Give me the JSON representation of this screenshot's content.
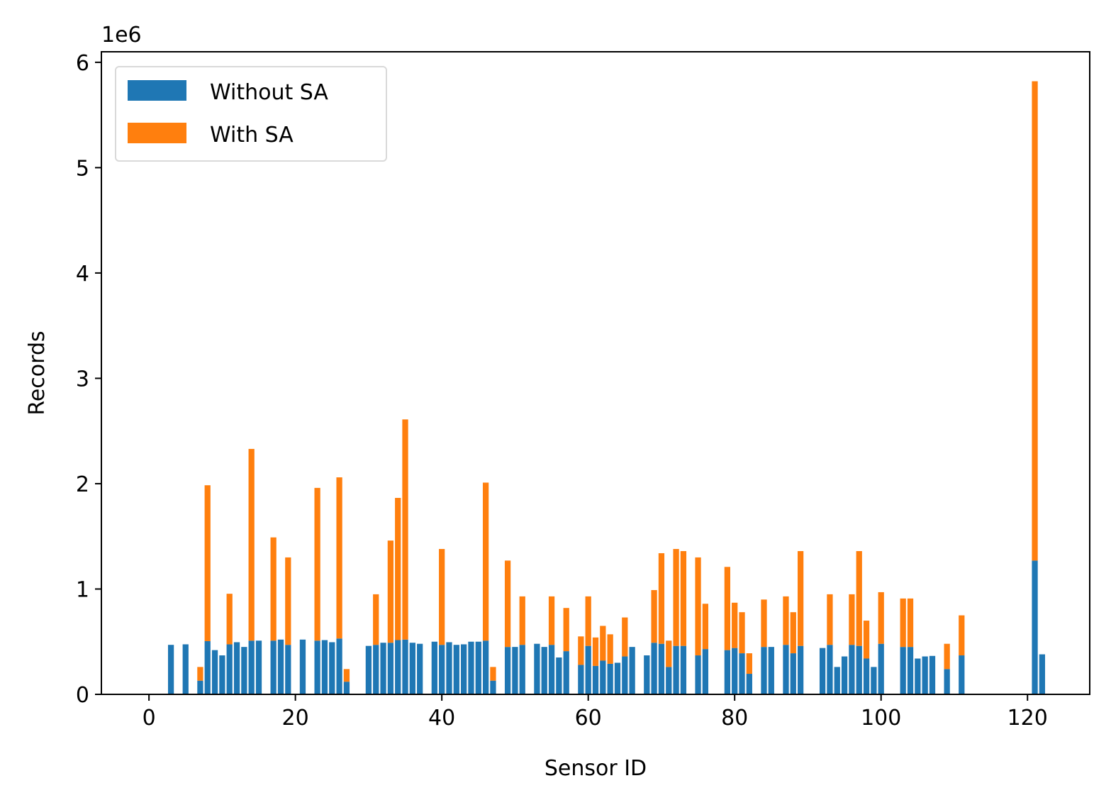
{
  "chart_data": {
    "type": "bar",
    "stacked": true,
    "xlabel": "Sensor ID",
    "ylabel": "Records",
    "y_multiplier_label": "1e6",
    "xlim": [
      -6.5,
      128.5
    ],
    "ylim": [
      0,
      6100000
    ],
    "xticks": [
      0,
      20,
      40,
      60,
      80,
      100,
      120
    ],
    "yticks": [
      0,
      1,
      2,
      3,
      4,
      5,
      6
    ],
    "legend_position": "top-left",
    "grid": false,
    "colors": {
      "without": "#1f77b4",
      "with": "#ff7f0e"
    },
    "series": [
      {
        "name": "Without SA",
        "color": "#1f77b4",
        "x": [
          3,
          5,
          7,
          8,
          9,
          10,
          11,
          12,
          13,
          14,
          15,
          17,
          18,
          19,
          21,
          23,
          24,
          25,
          26,
          27,
          30,
          31,
          32,
          33,
          34,
          35,
          36,
          37,
          39,
          40,
          41,
          42,
          43,
          44,
          45,
          46,
          47,
          49,
          50,
          51,
          53,
          54,
          55,
          56,
          57,
          59,
          60,
          61,
          62,
          63,
          64,
          65,
          66,
          68,
          69,
          70,
          71,
          72,
          73,
          75,
          76,
          79,
          80,
          81,
          82,
          84,
          85,
          87,
          88,
          89,
          92,
          93,
          94,
          95,
          96,
          97,
          98,
          99,
          100,
          103,
          104,
          105,
          106,
          107,
          109,
          111,
          121,
          122
        ],
        "values": [
          470000,
          475000,
          130000,
          505000,
          420000,
          370000,
          475000,
          495000,
          450000,
          510000,
          510000,
          510000,
          520000,
          470000,
          520000,
          510000,
          515000,
          495000,
          530000,
          120000,
          460000,
          470000,
          490000,
          490000,
          515000,
          520000,
          490000,
          480000,
          500000,
          470000,
          495000,
          470000,
          475000,
          500000,
          500000,
          510000,
          130000,
          450000,
          450000,
          470000,
          480000,
          450000,
          470000,
          350000,
          410000,
          280000,
          460000,
          270000,
          320000,
          290000,
          300000,
          360000,
          450000,
          370000,
          490000,
          480000,
          260000,
          460000,
          460000,
          370000,
          430000,
          420000,
          440000,
          390000,
          195000,
          450000,
          450000,
          470000,
          390000,
          460000,
          440000,
          470000,
          260000,
          360000,
          470000,
          460000,
          340000,
          260000,
          480000,
          450000,
          450000,
          340000,
          360000,
          365000,
          240000,
          370000,
          1270000,
          380000
        ]
      },
      {
        "name": "With SA",
        "color": "#ff7f0e",
        "x": [
          3,
          5,
          7,
          8,
          9,
          10,
          11,
          12,
          13,
          14,
          15,
          17,
          18,
          19,
          21,
          23,
          24,
          25,
          26,
          27,
          30,
          31,
          32,
          33,
          34,
          35,
          36,
          37,
          39,
          40,
          41,
          42,
          43,
          44,
          45,
          46,
          47,
          49,
          50,
          51,
          53,
          54,
          55,
          56,
          57,
          59,
          60,
          61,
          62,
          63,
          64,
          65,
          66,
          68,
          69,
          70,
          71,
          72,
          73,
          75,
          76,
          79,
          80,
          81,
          82,
          84,
          85,
          87,
          88,
          89,
          92,
          93,
          94,
          95,
          96,
          97,
          98,
          99,
          100,
          103,
          104,
          105,
          106,
          107,
          109,
          111,
          121,
          122
        ],
        "values": [
          0,
          0,
          130000,
          1480000,
          0,
          0,
          480000,
          0,
          0,
          1820000,
          0,
          980000,
          0,
          830000,
          0,
          1450000,
          0,
          0,
          1530000,
          120000,
          0,
          480000,
          0,
          970000,
          1350000,
          2090000,
          0,
          0,
          0,
          910000,
          0,
          0,
          0,
          0,
          0,
          1500000,
          130000,
          820000,
          0,
          460000,
          0,
          0,
          460000,
          0,
          410000,
          270000,
          470000,
          270000,
          330000,
          280000,
          0,
          370000,
          0,
          0,
          500000,
          860000,
          250000,
          920000,
          900000,
          930000,
          430000,
          790000,
          430000,
          390000,
          195000,
          450000,
          0,
          460000,
          390000,
          900000,
          0,
          480000,
          0,
          0,
          480000,
          900000,
          360000,
          0,
          490000,
          460000,
          460000,
          0,
          0,
          0,
          240000,
          380000,
          4550000,
          0
        ]
      }
    ]
  }
}
